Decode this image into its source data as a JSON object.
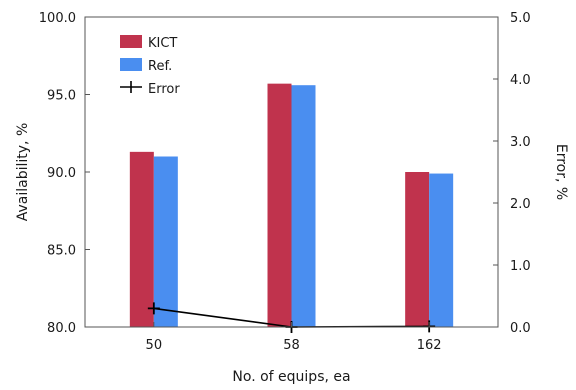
{
  "chart_data": {
    "type": "bar",
    "categories": [
      "50",
      "58",
      "162"
    ],
    "xlabel": "No. of equips, ea",
    "ylabel": "Availability, %",
    "y2label": "Error, %",
    "ylim": [
      80.0,
      100.0
    ],
    "y2lim": [
      0.0,
      5.0
    ],
    "yticks": [
      "80.0",
      "85.0",
      "90.0",
      "95.0",
      "100.0"
    ],
    "y2ticks": [
      "0.0",
      "1.0",
      "2.0",
      "3.0",
      "4.0",
      "5.0"
    ],
    "series": [
      {
        "name": "KICT",
        "type": "bar",
        "axis": "left",
        "color": "#c0334d",
        "values": [
          91.3,
          95.7,
          90.0
        ]
      },
      {
        "name": "Ref.",
        "type": "bar",
        "axis": "left",
        "color": "#4a8ef0",
        "values": [
          91.0,
          95.6,
          89.9
        ]
      },
      {
        "name": "Error",
        "type": "line",
        "axis": "right",
        "color": "#000000",
        "marker": "plus",
        "values": [
          0.3,
          0.0,
          0.01
        ]
      }
    ],
    "legend_position": "top-left",
    "grid": false
  }
}
